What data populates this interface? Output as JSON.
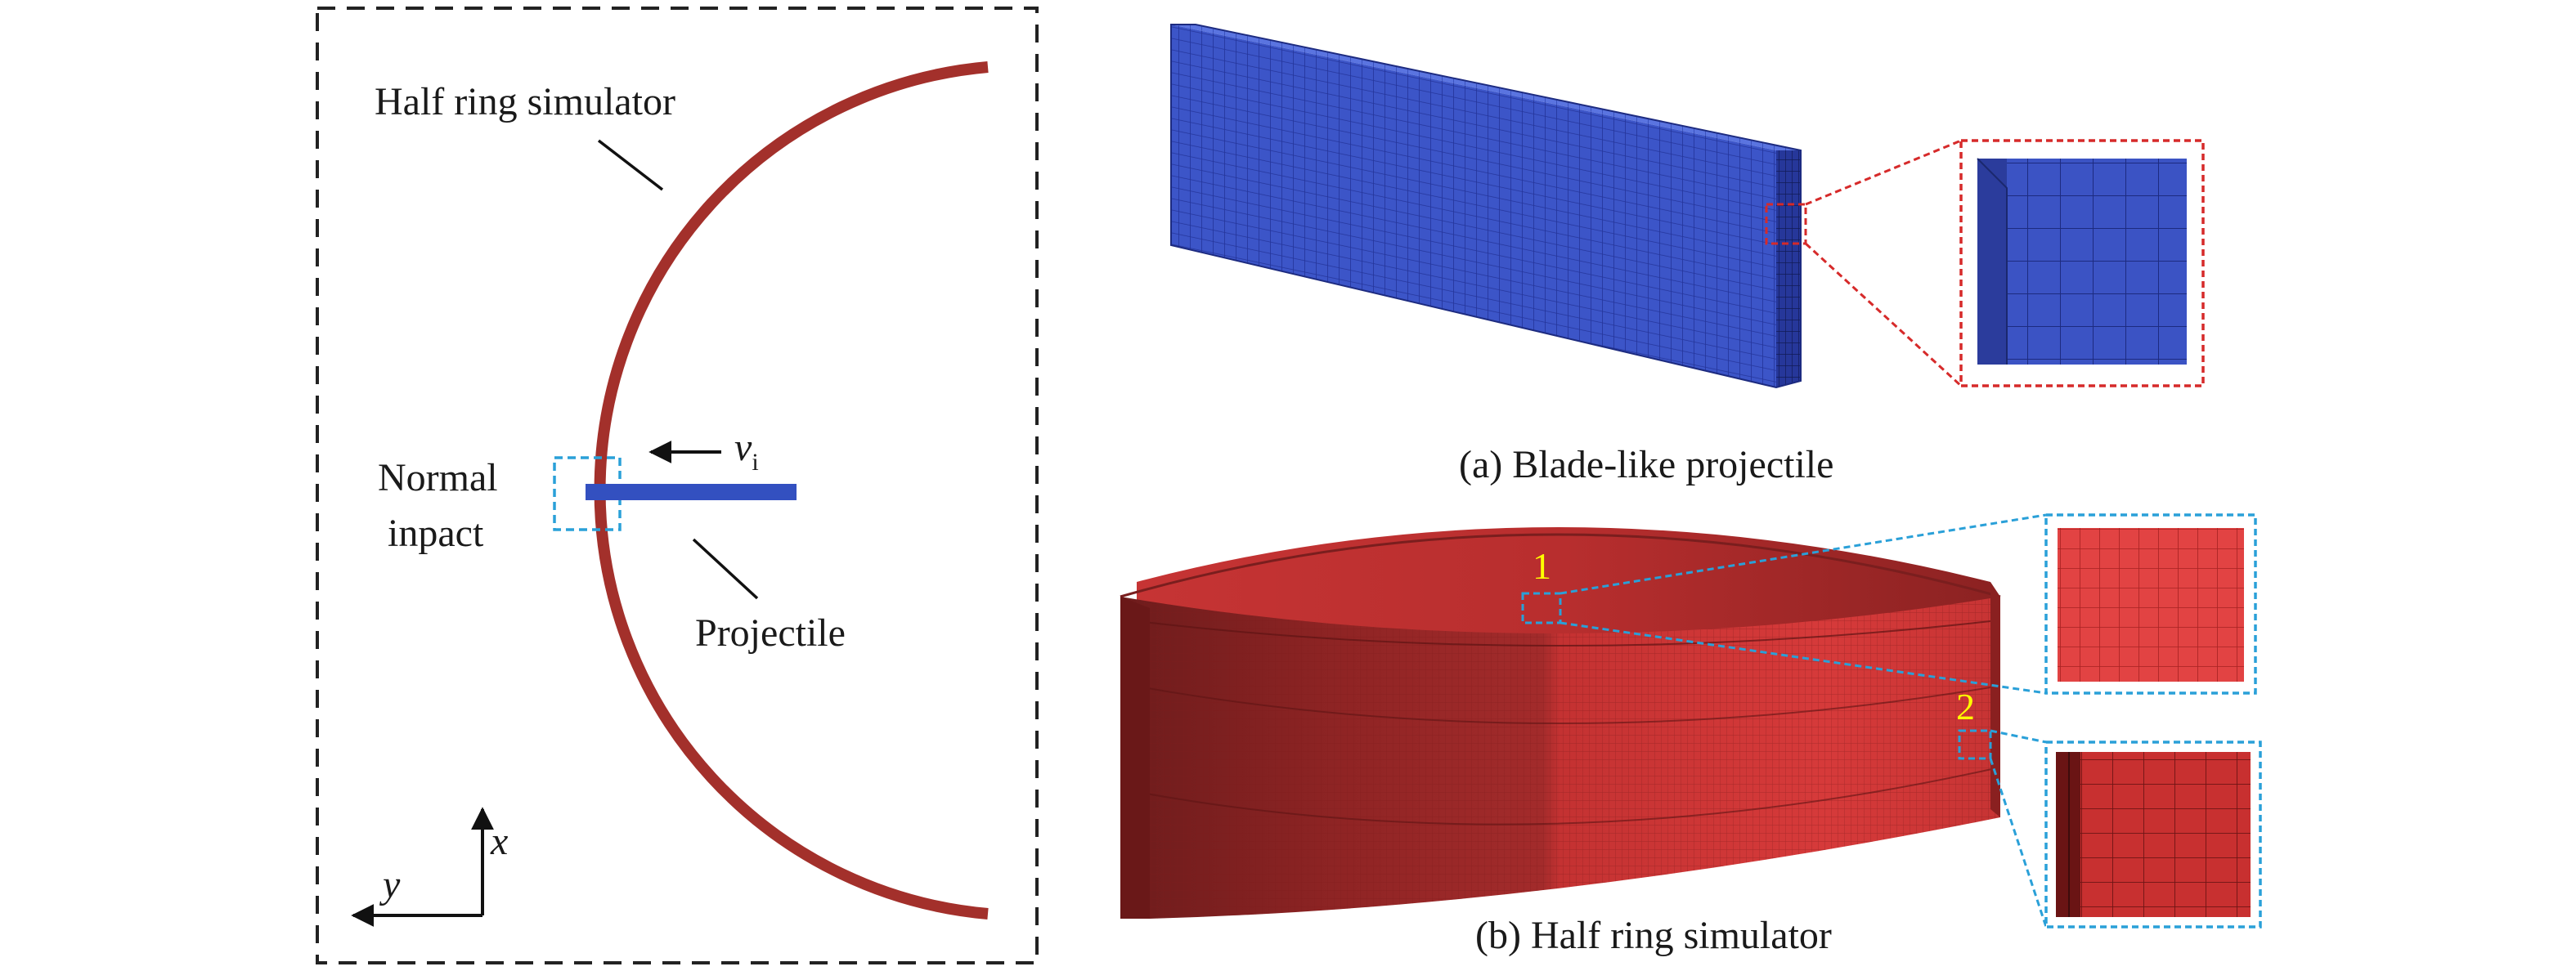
{
  "left_panel": {
    "half_ring_label": "Half ring simulator",
    "normal_impact_line1": "Normal",
    "normal_impact_line2": "inpact",
    "velocity_symbol": "v",
    "velocity_subscript": "i",
    "projectile_label": "Projectile",
    "axis_x_label": "x",
    "axis_y_label": "y"
  },
  "right_panel": {
    "caption_a": "(a) Blade-like projectile",
    "caption_b": "(b) Half ring simulator",
    "marker_1": "1",
    "marker_2": "2"
  },
  "colors": {
    "ring": "#a3302b",
    "projectile": "#3350c0",
    "zoom_red": "#d62a2a",
    "zoom_blue": "#2aa0d8",
    "marker": "#ffff00"
  }
}
